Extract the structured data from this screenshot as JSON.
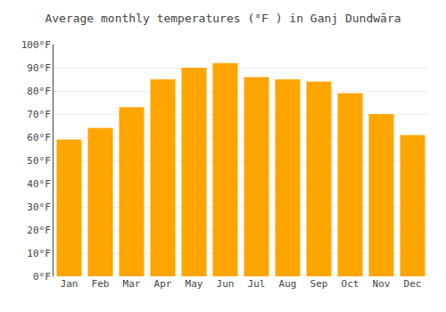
{
  "chart_data": {
    "type": "bar",
    "title": "Average monthly temperatures (°F ) in Ganj Dundwāra",
    "categories": [
      "Jan",
      "Feb",
      "Mar",
      "Apr",
      "May",
      "Jun",
      "Jul",
      "Aug",
      "Sep",
      "Oct",
      "Nov",
      "Dec"
    ],
    "values": [
      59,
      64,
      73,
      85,
      90,
      92,
      86,
      85,
      84,
      79,
      70,
      61
    ],
    "color": "#FFA500",
    "ylim": [
      0,
      100
    ],
    "yticks": [
      {
        "value": 0,
        "label": "0°F"
      },
      {
        "value": 10,
        "label": "10°F"
      },
      {
        "value": 20,
        "label": "20°F"
      },
      {
        "value": 30,
        "label": "30°F"
      },
      {
        "value": 40,
        "label": "40°F"
      },
      {
        "value": 50,
        "label": "50°F"
      },
      {
        "value": 60,
        "label": "60°F"
      },
      {
        "value": 70,
        "label": "70°F"
      },
      {
        "value": 80,
        "label": "80°F"
      },
      {
        "value": 90,
        "label": "90°F"
      },
      {
        "value": 100,
        "label": "100°F"
      }
    ],
    "grid": true
  }
}
